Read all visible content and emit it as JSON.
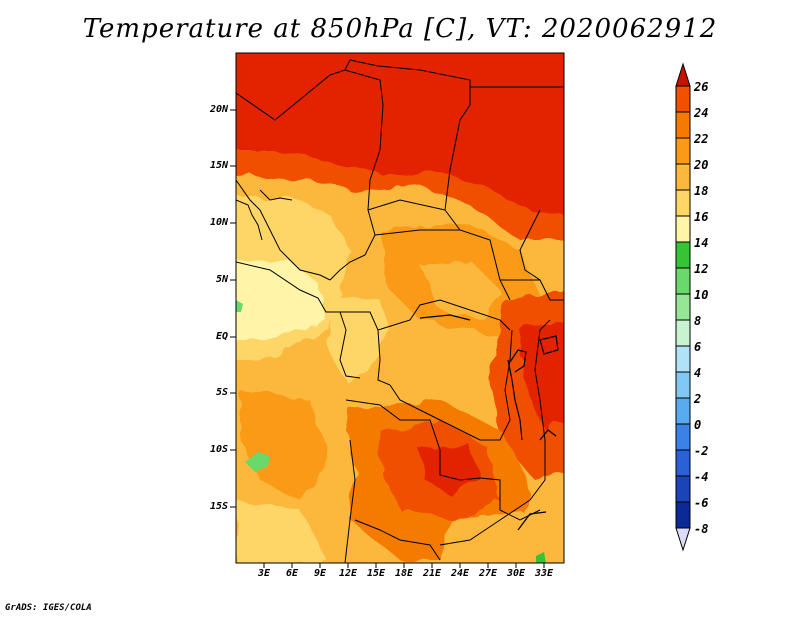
{
  "title": "Temperature at 850hPa [C], VT: 2020062912",
  "footer": "GrADS: IGES/COLA",
  "map": {
    "region": "Central Africa",
    "lon_range_deg": [
      0,
      35
    ],
    "lat_range_deg": [
      -20,
      25
    ],
    "lat_labels": [
      "20N",
      "15N",
      "10N",
      "5N",
      "EQ",
      "5S",
      "10S",
      "15S"
    ],
    "lon_labels": [
      "3E",
      "6E",
      "9E",
      "12E",
      "15E",
      "18E",
      "21E",
      "24E",
      "27E",
      "30E",
      "33E"
    ]
  },
  "colorbar": {
    "units": "C",
    "levels": [
      "26",
      "24",
      "22",
      "20",
      "18",
      "16",
      "14",
      "12",
      "10",
      "8",
      "6",
      "4",
      "2",
      "0",
      "-2",
      "-4",
      "-6",
      "-8"
    ],
    "colors": [
      "#e32400",
      "#f05000",
      "#f57a00",
      "#fa9a18",
      "#fbb83c",
      "#fed668",
      "#fff4a8",
      "#36c436",
      "#6ad86a",
      "#96e696",
      "#c8f2d0",
      "#b0e2f8",
      "#82c8f4",
      "#5aaaf0",
      "#3c82e6",
      "#2a62d6",
      "#1a44b8",
      "#0c2a96",
      "#0a147a"
    ],
    "top_cap_color": "#c41400",
    "bottom_cap_color": "#dcdcf8"
  }
}
